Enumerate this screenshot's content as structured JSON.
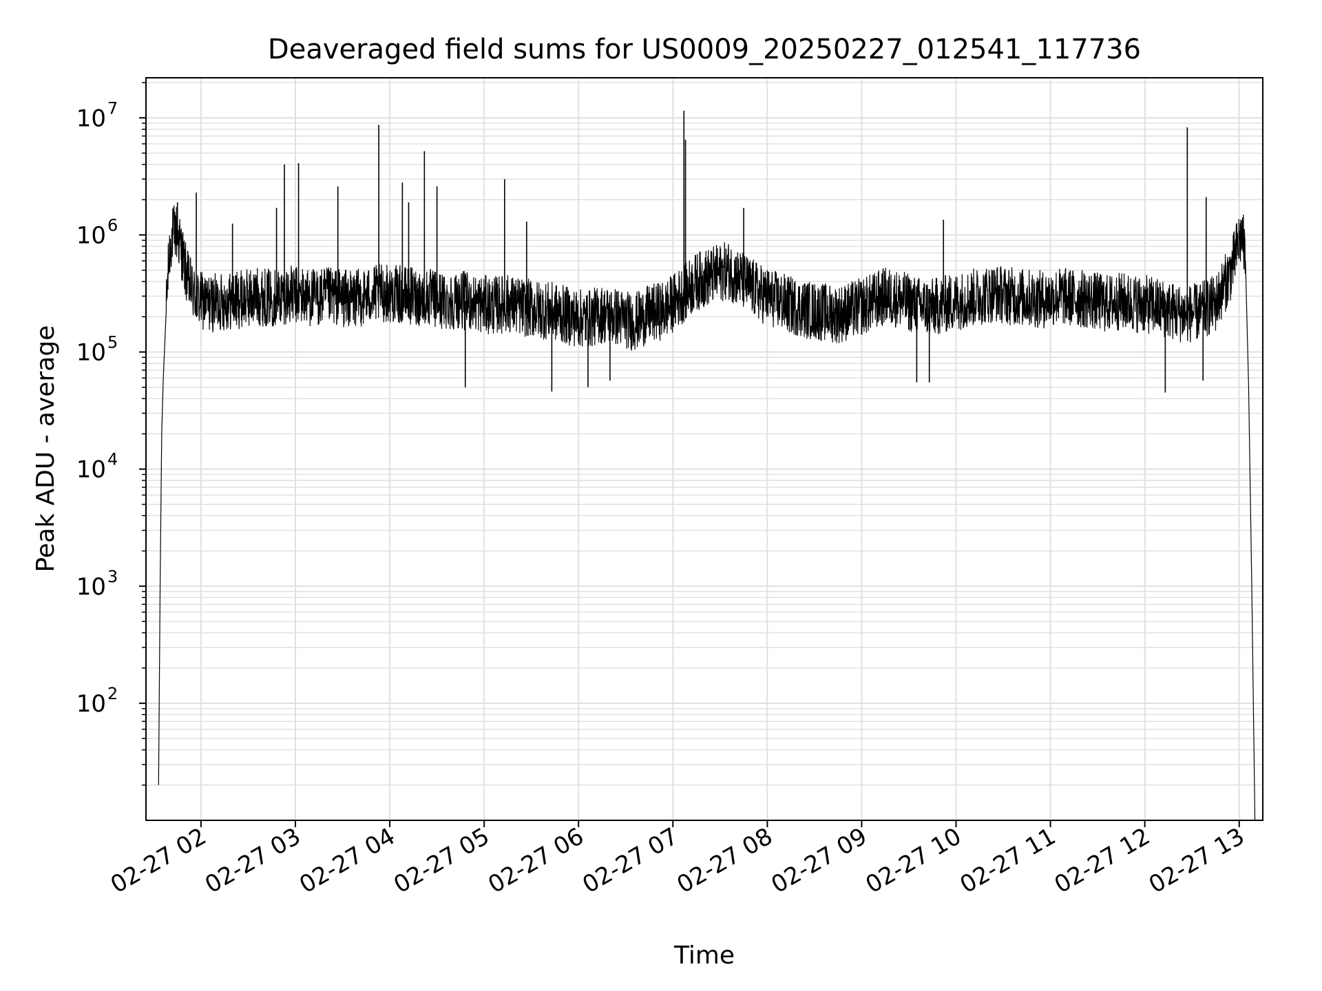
{
  "chart_data": {
    "type": "line",
    "title": "Deaveraged field sums for US0009_20250227_012541_117736",
    "xlabel": "Time",
    "ylabel": "Peak ADU - average",
    "xscale": "time",
    "yscale": "log",
    "xlim": [
      "2025-02-27T01:25",
      "2025-02-27T13:15"
    ],
    "ylim": [
      10,
      22000000
    ],
    "grid": true,
    "legend": "none",
    "line_color": "#000000",
    "grid_color": "#e0e0e0",
    "x_ticks": [
      "2025-02-27T02:00",
      "2025-02-27T03:00",
      "2025-02-27T04:00",
      "2025-02-27T05:00",
      "2025-02-27T06:00",
      "2025-02-27T07:00",
      "2025-02-27T08:00",
      "2025-02-27T09:00",
      "2025-02-27T10:00",
      "2025-02-27T11:00",
      "2025-02-27T12:00",
      "2025-02-27T13:00"
    ],
    "x_tick_labels": [
      "02-27 02",
      "02-27 03",
      "02-27 04",
      "02-27 05",
      "02-27 06",
      "02-27 07",
      "02-27 08",
      "02-27 09",
      "02-27 10",
      "02-27 11",
      "02-27 12",
      "02-27 13"
    ],
    "y_ticks": [
      100,
      1000,
      10000,
      100000,
      1000000,
      10000000
    ],
    "y_tick_bases": [
      "10",
      "10",
      "10",
      "10",
      "10",
      "10"
    ],
    "y_tick_exponents": [
      "2",
      "3",
      "4",
      "5",
      "6",
      "7"
    ],
    "series": [
      {
        "x": [
          "2025-02-27T01:33",
          "2025-02-27T01:34",
          "2025-02-27T01:35",
          "2025-02-27T01:36",
          "2025-02-27T01:37",
          "2025-02-27T01:38",
          "2025-02-27T01:39",
          "2025-02-27T01:40",
          "2025-02-27T01:41",
          "2025-02-27T01:42",
          "2025-02-27T01:44",
          "2025-02-27T01:46",
          "2025-02-27T01:48",
          "2025-02-27T01:50",
          "2025-02-27T01:52",
          "2025-02-27T01:54",
          "2025-02-27T01:56",
          "2025-02-27T01:58",
          "2025-02-27T02:05",
          "2025-02-27T02:15",
          "2025-02-27T02:25",
          "2025-02-27T02:35",
          "2025-02-27T02:45",
          "2025-02-27T02:55",
          "2025-02-27T03:05",
          "2025-02-27T03:15",
          "2025-02-27T03:25",
          "2025-02-27T03:35",
          "2025-02-27T03:45",
          "2025-02-27T03:55",
          "2025-02-27T04:05",
          "2025-02-27T04:15",
          "2025-02-27T04:25",
          "2025-02-27T04:35",
          "2025-02-27T04:45",
          "2025-02-27T04:55",
          "2025-02-27T05:05",
          "2025-02-27T05:15",
          "2025-02-27T05:25",
          "2025-02-27T05:35",
          "2025-02-27T05:45",
          "2025-02-27T05:55",
          "2025-02-27T06:05",
          "2025-02-27T06:15",
          "2025-02-27T06:25",
          "2025-02-27T06:35",
          "2025-02-27T06:45",
          "2025-02-27T06:55",
          "2025-02-27T07:05",
          "2025-02-27T07:15",
          "2025-02-27T07:25",
          "2025-02-27T07:35",
          "2025-02-27T07:45",
          "2025-02-27T07:55",
          "2025-02-27T08:05",
          "2025-02-27T08:15",
          "2025-02-27T08:25",
          "2025-02-27T08:35",
          "2025-02-27T08:45",
          "2025-02-27T08:55",
          "2025-02-27T09:05",
          "2025-02-27T09:15",
          "2025-02-27T09:25",
          "2025-02-27T09:35",
          "2025-02-27T09:45",
          "2025-02-27T09:55",
          "2025-02-27T10:05",
          "2025-02-27T10:15",
          "2025-02-27T10:25",
          "2025-02-27T10:35",
          "2025-02-27T10:45",
          "2025-02-27T10:55",
          "2025-02-27T11:05",
          "2025-02-27T11:15",
          "2025-02-27T11:25",
          "2025-02-27T11:35",
          "2025-02-27T11:45",
          "2025-02-27T11:55",
          "2025-02-27T12:05",
          "2025-02-27T12:15",
          "2025-02-27T12:25",
          "2025-02-27T12:35",
          "2025-02-27T12:45",
          "2025-02-27T12:55",
          "2025-02-27T13:00",
          "2025-02-27T13:02",
          "2025-02-27T13:04",
          "2025-02-27T13:06",
          "2025-02-27T13:08",
          "2025-02-27T13:10"
        ],
        "y": [
          20,
          1000,
          20000,
          60000,
          120000,
          250000,
          450000,
          700000,
          900000,
          1000000,
          1100000,
          900000,
          700000,
          500000,
          400000,
          350000,
          300000,
          280000,
          260000,
          270000,
          280000,
          300000,
          290000,
          310000,
          300000,
          290000,
          300000,
          280000,
          300000,
          320000,
          310000,
          300000,
          290000,
          270000,
          280000,
          260000,
          250000,
          260000,
          240000,
          230000,
          220000,
          200000,
          190000,
          210000,
          200000,
          180000,
          210000,
          230000,
          300000,
          400000,
          450000,
          500000,
          400000,
          320000,
          280000,
          250000,
          230000,
          220000,
          210000,
          230000,
          260000,
          300000,
          280000,
          250000,
          240000,
          260000,
          280000,
          300000,
          320000,
          300000,
          290000,
          280000,
          300000,
          290000,
          280000,
          260000,
          270000,
          260000,
          250000,
          230000,
          210000,
          220000,
          260000,
          500000,
          900000,
          1000000,
          600000,
          50000,
          1000,
          10
        ]
      }
    ],
    "spikes": [
      {
        "x": "2025-02-27T01:45",
        "y": 1900000
      },
      {
        "x": "2025-02-27T01:57",
        "y": 2300000
      },
      {
        "x": "2025-02-27T02:20",
        "y": 1250000
      },
      {
        "x": "2025-02-27T02:48",
        "y": 1700000
      },
      {
        "x": "2025-02-27T02:53",
        "y": 4000000
      },
      {
        "x": "2025-02-27T03:02",
        "y": 4100000
      },
      {
        "x": "2025-02-27T03:27",
        "y": 2600000
      },
      {
        "x": "2025-02-27T03:53",
        "y": 8700000
      },
      {
        "x": "2025-02-27T04:08",
        "y": 2800000
      },
      {
        "x": "2025-02-27T04:12",
        "y": 1900000
      },
      {
        "x": "2025-02-27T04:22",
        "y": 5200000
      },
      {
        "x": "2025-02-27T04:30",
        "y": 2600000
      },
      {
        "x": "2025-02-27T05:13",
        "y": 3000000
      },
      {
        "x": "2025-02-27T05:27",
        "y": 1300000
      },
      {
        "x": "2025-02-27T07:07",
        "y": 11500000
      },
      {
        "x": "2025-02-27T07:08",
        "y": 6500000
      },
      {
        "x": "2025-02-27T07:45",
        "y": 1700000
      },
      {
        "x": "2025-02-27T09:52",
        "y": 1350000
      },
      {
        "x": "2025-02-27T12:27",
        "y": 8300000
      },
      {
        "x": "2025-02-27T12:39",
        "y": 2100000
      }
    ],
    "dips": [
      {
        "x": "2025-02-27T04:48",
        "y": 50000
      },
      {
        "x": "2025-02-27T05:43",
        "y": 46000
      },
      {
        "x": "2025-02-27T06:06",
        "y": 50000
      },
      {
        "x": "2025-02-27T06:20",
        "y": 57000
      },
      {
        "x": "2025-02-27T09:35",
        "y": 55000
      },
      {
        "x": "2025-02-27T09:43",
        "y": 55000
      },
      {
        "x": "2025-02-27T12:13",
        "y": 45000
      },
      {
        "x": "2025-02-27T12:37",
        "y": 57000
      }
    ]
  }
}
